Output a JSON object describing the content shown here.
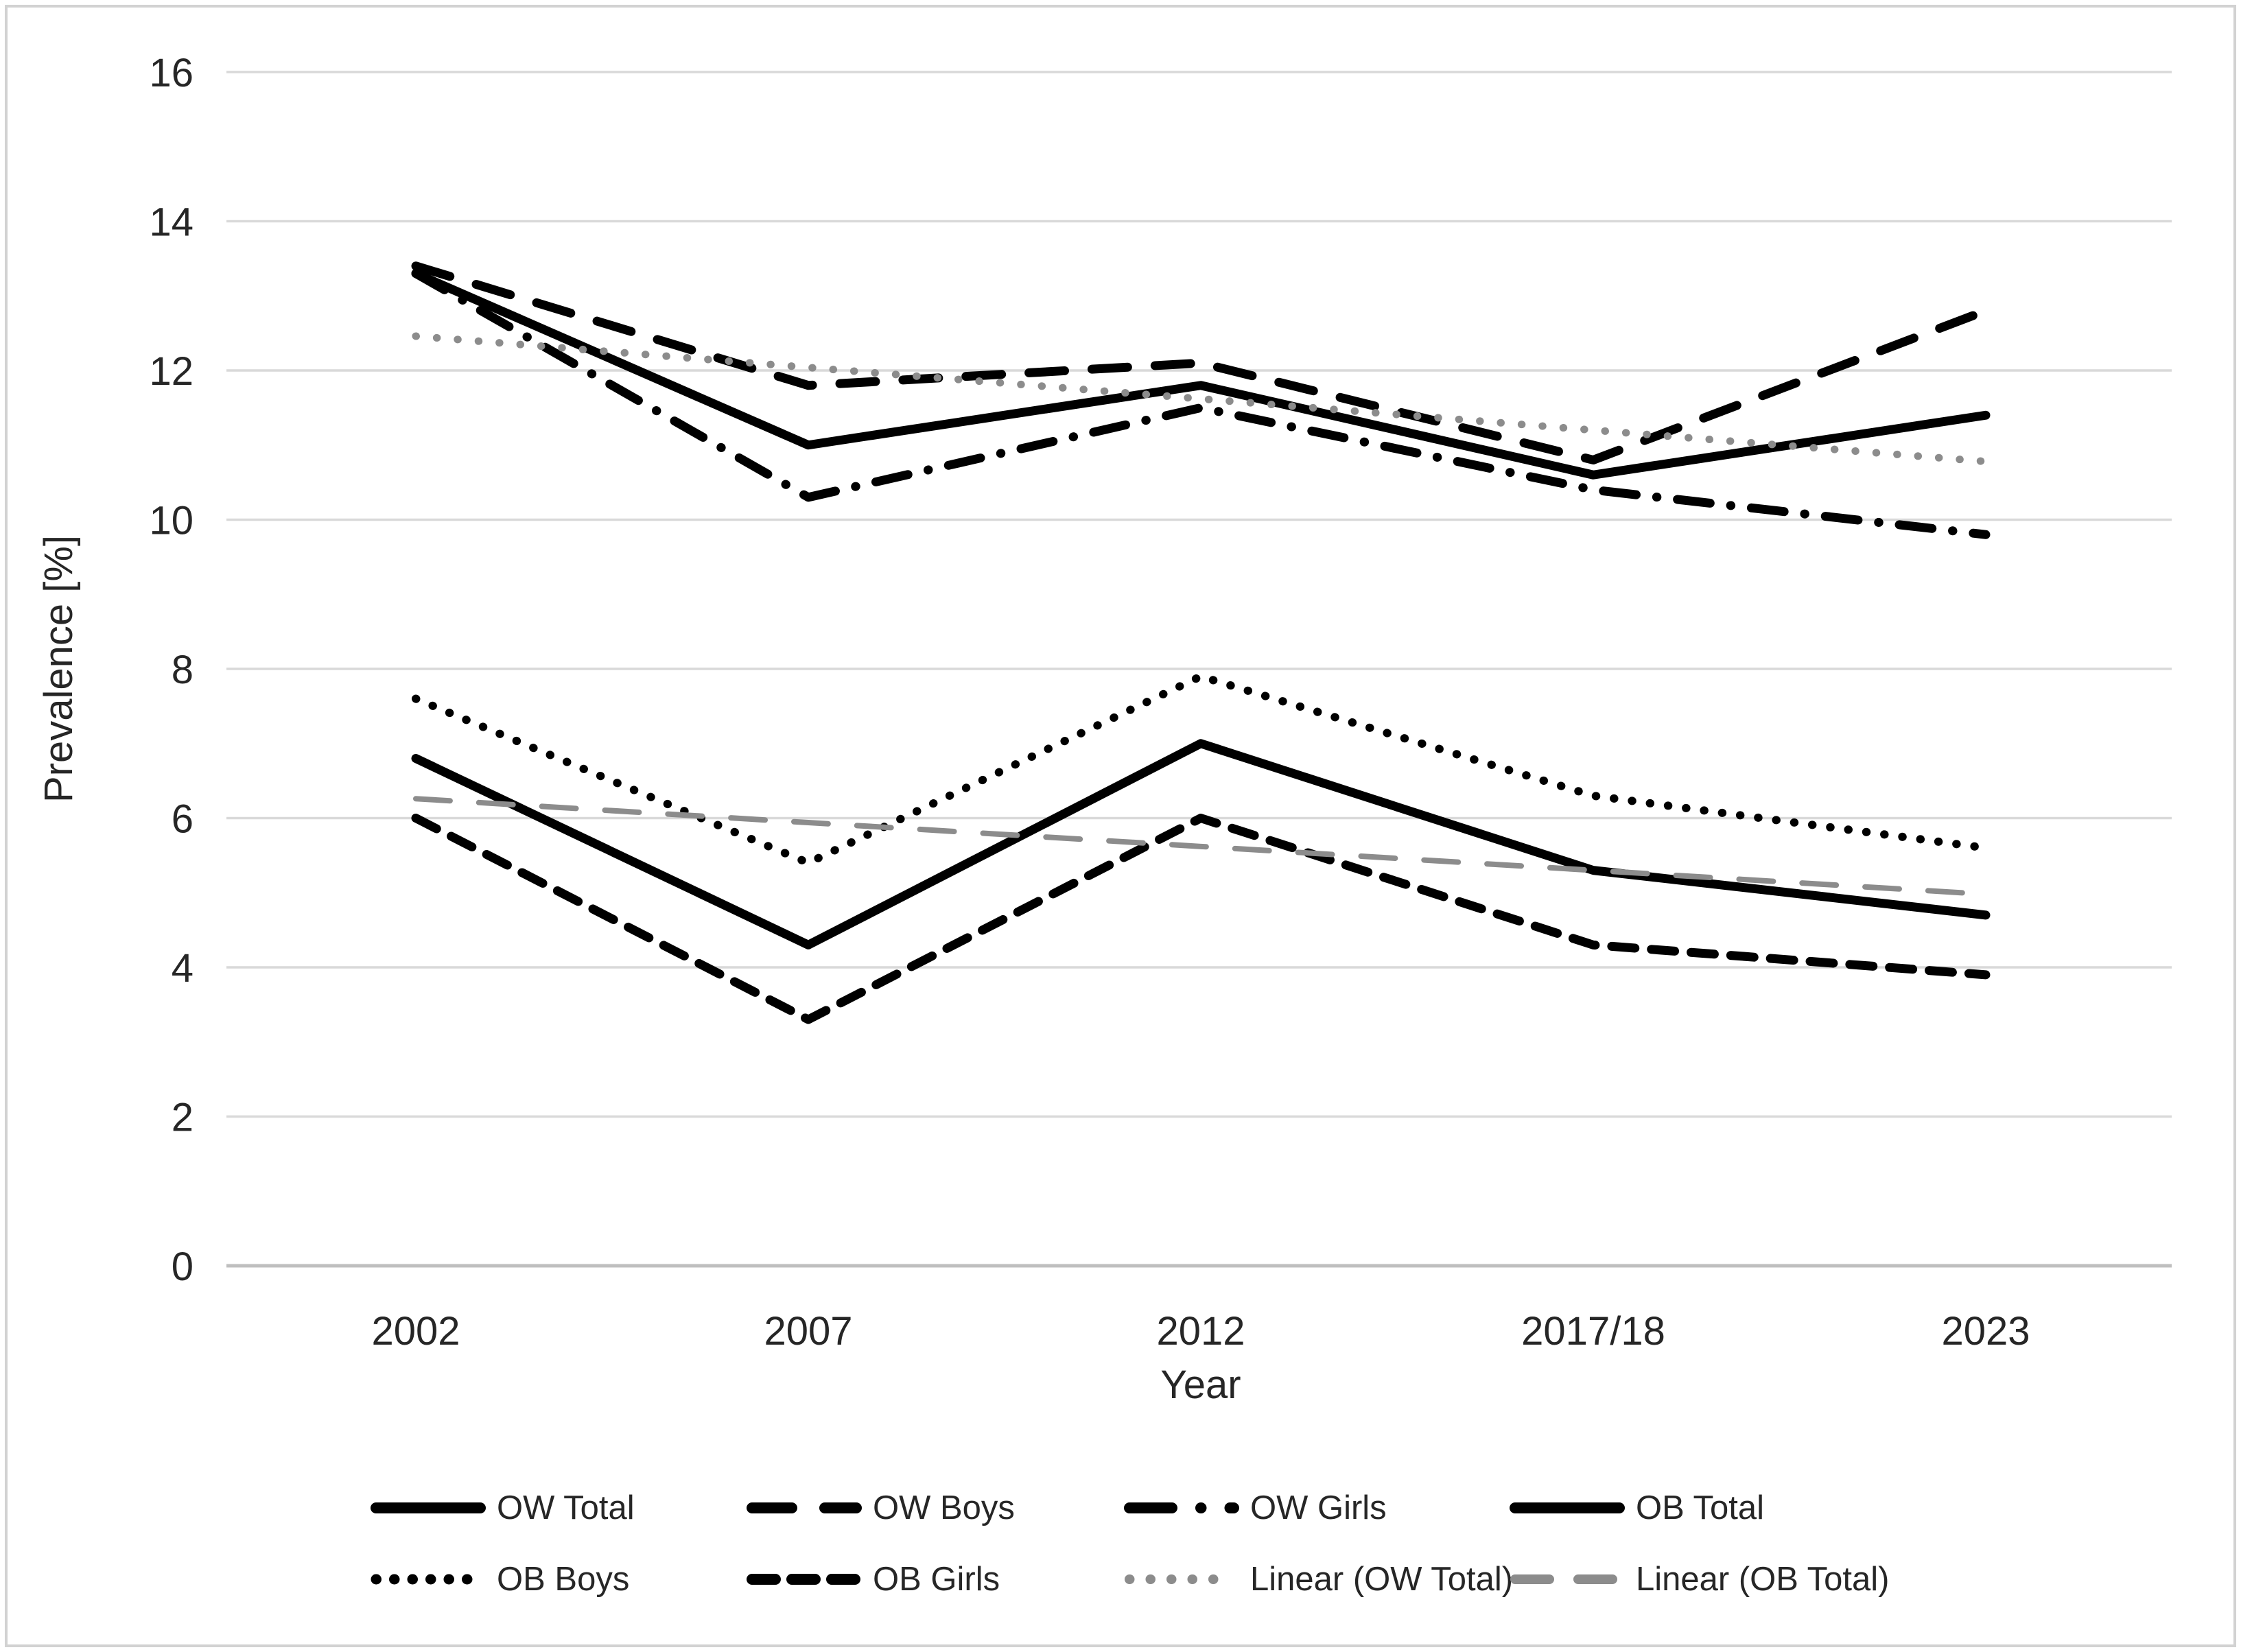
{
  "chart_data": {
    "type": "line",
    "title": "",
    "xlabel": "Year",
    "ylabel": "Prevalence [%]",
    "categories": [
      "2002",
      "2007",
      "2012",
      "2017/18",
      "2023"
    ],
    "ylim": [
      0,
      16
    ],
    "ytick_step": 2,
    "grid": "horizontal",
    "legend_position": "bottom",
    "series": [
      {
        "name": "OW Total",
        "values": [
          13.3,
          11.0,
          11.8,
          10.6,
          11.4
        ],
        "color": "#000000",
        "line": "solid",
        "width": 13,
        "dash": null
      },
      {
        "name": "OW Boys",
        "values": [
          13.4,
          11.8,
          12.1,
          10.8,
          12.8
        ],
        "color": "#000000",
        "line": "long-dash",
        "width": 13,
        "dash": "52 40"
      },
      {
        "name": "OW Girls",
        "values": [
          13.3,
          10.3,
          11.5,
          10.4,
          9.8
        ],
        "color": "#000000",
        "line": "dash-dot",
        "width": 13,
        "dash": "48 30 0.5 30"
      },
      {
        "name": "OB Total",
        "values": [
          6.8,
          4.3,
          7.0,
          5.3,
          4.7
        ],
        "color": "#000000",
        "line": "solid",
        "width": 13,
        "dash": null
      },
      {
        "name": "OB Boys",
        "values": [
          7.6,
          5.4,
          7.9,
          6.3,
          5.6
        ],
        "color": "#000000",
        "line": "dotted",
        "width": 12,
        "dash": "0.5 26"
      },
      {
        "name": "OB Girls",
        "values": [
          6.0,
          3.3,
          6.0,
          4.3,
          3.9
        ],
        "color": "#000000",
        "line": "dashed",
        "width": 13,
        "dash": "34 24"
      },
      {
        "name": "Linear (OW Total)",
        "values": [
          12.46,
          12.04,
          11.62,
          11.2,
          10.78
        ],
        "color": "#8c8c8c",
        "line": "dotted",
        "width": 11,
        "dash": "0.5 30",
        "trendline": true
      },
      {
        "name": "Linear (OB Total)",
        "values": [
          6.26,
          5.94,
          5.62,
          5.3,
          4.98
        ],
        "color": "#8c8c8c",
        "line": "dashed",
        "width": 8,
        "dash": "50 42",
        "trendline": true
      }
    ],
    "legend_rows": [
      [
        "OW Total",
        "OW Boys",
        "OW Girls",
        "OB Total"
      ],
      [
        "OB Boys",
        "OB Girls",
        "Linear (OW Total)",
        "Linear (OB Total)"
      ]
    ]
  },
  "axes": {
    "x_title": "Year",
    "y_title": "Prevalence [%]"
  }
}
